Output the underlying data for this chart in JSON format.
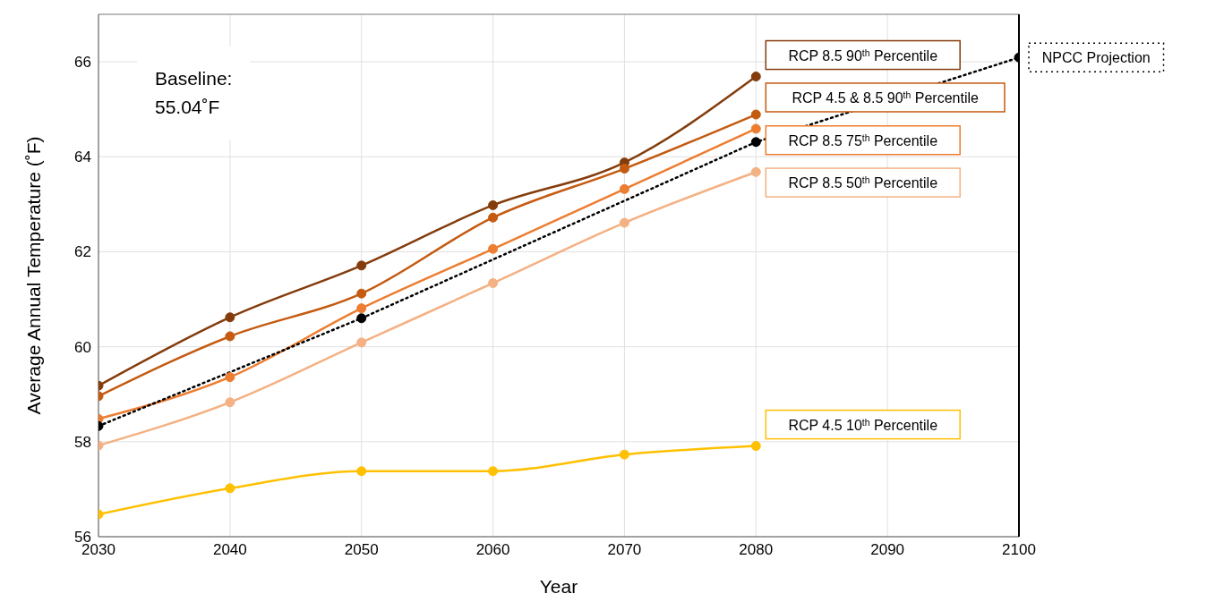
{
  "chart_data": {
    "type": "line",
    "xlabel": "Year",
    "ylabel": "Average Annual Temperature (˚F)",
    "xlim": [
      2030,
      2100
    ],
    "xticks": [
      2030,
      2040,
      2050,
      2060,
      2070,
      2080,
      2090,
      2100
    ],
    "ylim": [
      56,
      67
    ],
    "yticks": [
      56,
      58,
      60,
      62,
      64,
      66
    ],
    "grid": true,
    "marker": "circle",
    "annotations": [
      "Baseline:\n55.04˚F"
    ],
    "x": [
      2030,
      2040,
      2050,
      2060,
      2070,
      2080
    ],
    "series": [
      {
        "name": "RCP 8.5 90$^{th}$ Percentile",
        "color": "#843c0c",
        "values": [
          59.18,
          60.62,
          61.71,
          62.98,
          63.88,
          65.69
        ]
      },
      {
        "name": "RCP 4.5 & 8.5 90$^{th}$ Percentile",
        "color": "#c55a11",
        "values": [
          58.96,
          60.22,
          61.12,
          62.72,
          63.75,
          64.89
        ]
      },
      {
        "name": "RCP 8.5 75$^{th}$ Percentile",
        "color": "#ed7d31",
        "values": [
          58.48,
          59.36,
          60.81,
          62.06,
          63.32,
          64.59
        ]
      },
      {
        "name": "RCP 8.5 50$^{th}$ Percentile",
        "color": "#f4b183",
        "values": [
          57.92,
          58.83,
          60.09,
          61.34,
          62.61,
          63.68
        ]
      },
      {
        "name": "RCP 4.5 10$^{th}$ Percentile",
        "color": "#ffc000",
        "values": [
          56.47,
          57.02,
          57.38,
          57.38,
          57.73,
          57.91
        ]
      },
      {
        "name": "NPCC Projection",
        "color": "#000000",
        "line_style": "dotted",
        "x": [
          2030,
          2050,
          2080,
          2100
        ],
        "values": [
          58.33,
          60.6,
          64.31,
          66.09
        ]
      }
    ]
  }
}
